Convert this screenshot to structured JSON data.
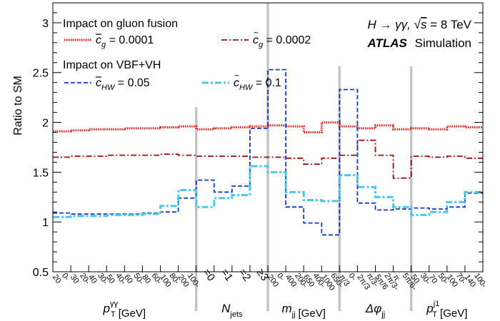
{
  "chart_data": {
    "type": "line",
    "style": "step",
    "ylabel": "Ratio to SM",
    "ylim": [
      0.5,
      3.2
    ],
    "yticks": [
      0.5,
      1,
      1.5,
      2,
      2.5,
      3
    ],
    "header": {
      "process": "H → γγ, √s = 8 TeV",
      "brand": "ATLAS",
      "brand_suffix": "Simulation"
    },
    "legend": {
      "group1_title": "Impact on gluon fusion",
      "group2_title": "Impact on VBF+VH"
    },
    "bins": [
      {
        "label": "0-20",
        "group": 0
      },
      {
        "label": "20-30",
        "group": 0
      },
      {
        "label": "30-40",
        "group": 0
      },
      {
        "label": "40-50",
        "group": 0
      },
      {
        "label": "50-60",
        "group": 0
      },
      {
        "label": "60-80",
        "group": 0
      },
      {
        "label": "80-100",
        "group": 0
      },
      {
        "label": "100-200",
        "group": 0
      },
      {
        "label": "=0",
        "group": 1
      },
      {
        "label": "=1",
        "group": 1
      },
      {
        "label": "=2",
        "group": 1
      },
      {
        "label": "≥3",
        "group": 1
      },
      {
        "label": "0-200",
        "group": 2
      },
      {
        "label": "200-400",
        "group": 2
      },
      {
        "label": "400-650",
        "group": 2
      },
      {
        "label": "650-1000",
        "group": 2
      },
      {
        "label": "0-π/3",
        "group": 3
      },
      {
        "label": "π/3-2π/3",
        "group": 3
      },
      {
        "label": "2π/3-5π/6",
        "group": 3
      },
      {
        "label": "5π/6-π",
        "group": 3
      },
      {
        "label": "30-50",
        "group": 4
      },
      {
        "label": "50-70",
        "group": 4
      },
      {
        "label": "70-100",
        "group": 4
      },
      {
        "label": "100-140",
        "group": 4
      }
    ],
    "groups": [
      {
        "name": "p_T^γγ [GeV]",
        "main": "p",
        "sub": "T",
        "sup": "γγ",
        "unit": "[GeV]"
      },
      {
        "name": "N_jets",
        "main": "N",
        "sub": "jets",
        "sup": "",
        "unit": ""
      },
      {
        "name": "m_jj [GeV]",
        "main": "m",
        "sub": "jj",
        "sup": "",
        "unit": "[GeV]"
      },
      {
        "name": "Δφ_jj",
        "main": "Δφ",
        "sub": "jj",
        "sup": "",
        "unit": ""
      },
      {
        "name": "p_T^j1 [GeV]",
        "main": "p",
        "sub": "T",
        "sup": "j1",
        "unit": "[GeV]"
      }
    ],
    "series": [
      {
        "name": "c̄_g = 0.0001",
        "symbol": "c",
        "bar": true,
        "sub": "g",
        "value_text": " = 0.0001",
        "color": "#e8231a",
        "dash": "1.6,1.4",
        "width": 3,
        "values": [
          1.91,
          1.92,
          1.93,
          1.93,
          1.94,
          1.94,
          1.95,
          1.96,
          1.93,
          1.94,
          1.95,
          1.96,
          1.97,
          1.96,
          1.9,
          2.0,
          1.96,
          1.94,
          1.97,
          1.93,
          1.94,
          1.93,
          1.96,
          1.95
        ]
      },
      {
        "name": "c̃_g = 0.0002",
        "symbol": "c",
        "tilde": true,
        "sub": "g",
        "value_text": " = 0.0002",
        "color": "#9b0f14",
        "dash": "8,3,2,3",
        "width": 1.8,
        "values": [
          1.65,
          1.66,
          1.66,
          1.67,
          1.67,
          1.67,
          1.68,
          1.67,
          1.66,
          1.66,
          1.66,
          1.65,
          1.65,
          1.64,
          1.58,
          1.64,
          1.67,
          1.82,
          1.67,
          1.44,
          1.66,
          1.65,
          1.66,
          1.64
        ]
      },
      {
        "name": "c̄_HW = 0.05",
        "symbol": "c",
        "bar": true,
        "sub": "HW",
        "value_text": " = 0.05",
        "color": "#1738c4",
        "dash": "6,3",
        "width": 1.8,
        "values": [
          1.09,
          1.08,
          1.08,
          1.08,
          1.08,
          1.09,
          1.1,
          1.24,
          1.42,
          1.3,
          1.36,
          1.94,
          2.53,
          1.15,
          0.99,
          0.87,
          2.33,
          1.19,
          1.12,
          1.13,
          1.14,
          1.13,
          1.15,
          1.29
        ]
      },
      {
        "name": "c̃_HW = 0.1",
        "symbol": "c",
        "tilde": true,
        "sub": "HW",
        "value_text": " = 0.1",
        "color": "#4bc6ec",
        "dash": "9,3,3,3",
        "width": 3,
        "values": [
          1.05,
          1.06,
          1.06,
          1.07,
          1.07,
          1.08,
          1.16,
          1.32,
          1.15,
          1.24,
          1.27,
          1.56,
          1.5,
          1.3,
          1.22,
          1.21,
          1.47,
          1.35,
          1.25,
          1.15,
          1.07,
          1.1,
          1.2,
          1.3
        ]
      }
    ]
  }
}
